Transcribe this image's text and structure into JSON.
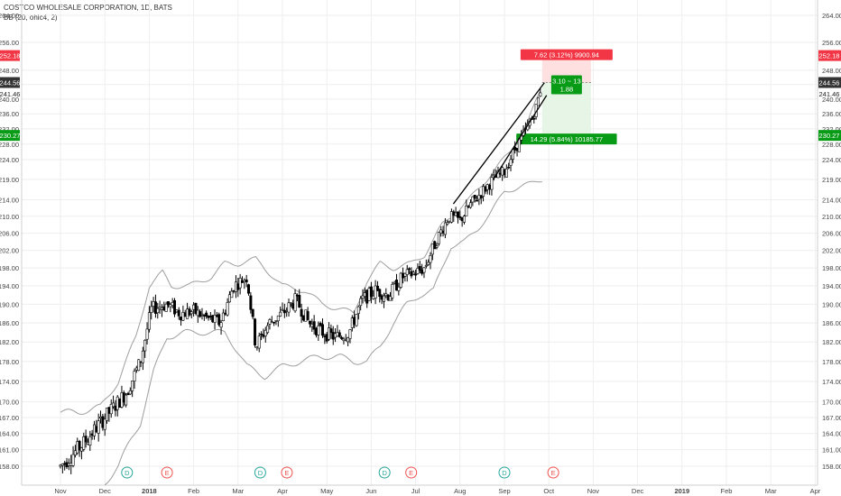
{
  "header": {
    "symbol_line": "COSTCO WHOLESALE CORPORATION, 1D, BATS",
    "indicator_line": "BB (20, ohlc4, 2)"
  },
  "colors": {
    "up": "#000000",
    "down": "#000000",
    "band": "#9e9e9e",
    "grid": "#eeeeee",
    "axis_text": "#444444",
    "stop_fill": "#ffe0e0",
    "target_fill": "#e6f5e6",
    "red_label": "#f23645",
    "green_label": "#089b16",
    "dark_label": "#333333",
    "event_d": "#26a69a",
    "event_e": "#ef5350"
  },
  "chart_data": {
    "type": "candlestick",
    "y_axis": {
      "side": "both",
      "ticks": [
        "264.00",
        "256.00",
        "248.00",
        "244.00",
        "240.00",
        "236.00",
        "232.00",
        "228.00",
        "224.00",
        "219.00",
        "214.00",
        "210.00",
        "206.00",
        "202.00",
        "198.00",
        "194.00",
        "190.00",
        "186.00",
        "182.00",
        "178.00",
        "174.00",
        "170.00",
        "167.00",
        "164.00",
        "161.00",
        "158.00"
      ],
      "tick_values": [
        264,
        256,
        248,
        244,
        240,
        236,
        232,
        228,
        224,
        219,
        214,
        210,
        206,
        202,
        198,
        194,
        190,
        186,
        182,
        178,
        174,
        170,
        167,
        164,
        161,
        158
      ],
      "scale": "log",
      "range": [
        155.9,
        267.0
      ]
    },
    "x_axis": {
      "ticks": [
        "Nov",
        "Dec",
        "2018",
        "Feb",
        "Mar",
        "Apr",
        "May",
        "Jun",
        "Jul",
        "Aug",
        "Sep",
        "Oct",
        "Nov",
        "Dec",
        "2019",
        "Feb",
        "Mar",
        "Apr"
      ]
    },
    "price_labels": [
      {
        "text": "252.18",
        "value": 252.18,
        "color": "red"
      },
      {
        "text": "244.56",
        "value": 244.56,
        "color": "dark"
      },
      {
        "text": "241.46",
        "value": 241.46,
        "color": "none"
      },
      {
        "text": "230.27",
        "value": 230.27,
        "color": "green"
      }
    ],
    "events": [
      {
        "label": "D",
        "month_index": 1.5
      },
      {
        "label": "E",
        "month_index": 2.4
      },
      {
        "label": "D",
        "month_index": 4.5
      },
      {
        "label": "E",
        "month_index": 5.1
      },
      {
        "label": "D",
        "month_index": 7.3
      },
      {
        "label": "E",
        "month_index": 7.9
      },
      {
        "label": "D",
        "month_index": 10.0
      },
      {
        "label": "E",
        "month_index": 11.1
      }
    ],
    "wedge": {
      "upper": {
        "from": {
          "month_index": 8.85,
          "price": 213
        },
        "to": {
          "month_index": 10.9,
          "price": 244.5
        }
      },
      "lower": {
        "from": {
          "month_index": 9.75,
          "price": 219
        },
        "to": {
          "month_index": 10.95,
          "price": 241
        }
      }
    },
    "position": {
      "start_month_index": 10.85,
      "end_month_index": 11.95,
      "entry": 244.56,
      "stop": 252.18,
      "target": 230.27,
      "stop_text": "7.62 (3.12%) 9900.94",
      "ratio_text_1": "3.10 ~ 13",
      "ratio_text_2": "1.88",
      "target_text": "14.29 (5.84%) 10185.77"
    },
    "trend_keypoints": [
      {
        "m": 0.0,
        "p": 158
      },
      {
        "m": 0.5,
        "p": 162
      },
      {
        "m": 1.0,
        "p": 167
      },
      {
        "m": 1.5,
        "p": 172
      },
      {
        "m": 1.8,
        "p": 178
      },
      {
        "m": 2.05,
        "p": 189
      },
      {
        "m": 2.4,
        "p": 190
      },
      {
        "m": 2.7,
        "p": 188
      },
      {
        "m": 3.0,
        "p": 188.5
      },
      {
        "m": 3.3,
        "p": 187
      },
      {
        "m": 3.6,
        "p": 186
      },
      {
        "m": 3.9,
        "p": 194
      },
      {
        "m": 4.2,
        "p": 196
      },
      {
        "m": 4.4,
        "p": 181
      },
      {
        "m": 4.7,
        "p": 186
      },
      {
        "m": 5.0,
        "p": 188
      },
      {
        "m": 5.3,
        "p": 191
      },
      {
        "m": 5.6,
        "p": 186
      },
      {
        "m": 5.9,
        "p": 184
      },
      {
        "m": 6.2,
        "p": 183
      },
      {
        "m": 6.5,
        "p": 184
      },
      {
        "m": 6.8,
        "p": 191
      },
      {
        "m": 7.1,
        "p": 193
      },
      {
        "m": 7.4,
        "p": 192
      },
      {
        "m": 7.7,
        "p": 196
      },
      {
        "m": 8.0,
        "p": 197
      },
      {
        "m": 8.2,
        "p": 198
      },
      {
        "m": 8.5,
        "p": 205
      },
      {
        "m": 8.75,
        "p": 210
      },
      {
        "m": 9.0,
        "p": 209
      },
      {
        "m": 9.25,
        "p": 213
      },
      {
        "m": 9.5,
        "p": 216
      },
      {
        "m": 9.75,
        "p": 219
      },
      {
        "m": 10.0,
        "p": 221
      },
      {
        "m": 10.25,
        "p": 227
      },
      {
        "m": 10.5,
        "p": 232
      },
      {
        "m": 10.7,
        "p": 237
      },
      {
        "m": 10.85,
        "p": 244.5
      }
    ],
    "upper_band_keypoints": [
      {
        "m": 0.0,
        "p": 168
      },
      {
        "m": 0.4,
        "p": 168
      },
      {
        "m": 0.9,
        "p": 169
      },
      {
        "m": 1.3,
        "p": 174
      },
      {
        "m": 1.7,
        "p": 183
      },
      {
        "m": 2.0,
        "p": 194
      },
      {
        "m": 2.3,
        "p": 197
      },
      {
        "m": 2.5,
        "p": 194
      },
      {
        "m": 2.9,
        "p": 194
      },
      {
        "m": 3.4,
        "p": 196
      },
      {
        "m": 3.7,
        "p": 199
      },
      {
        "m": 4.0,
        "p": 199
      },
      {
        "m": 4.4,
        "p": 200
      },
      {
        "m": 4.7,
        "p": 197
      },
      {
        "m": 5.0,
        "p": 194
      },
      {
        "m": 5.5,
        "p": 193
      },
      {
        "m": 5.9,
        "p": 190
      },
      {
        "m": 6.3,
        "p": 189
      },
      {
        "m": 6.6,
        "p": 188
      },
      {
        "m": 6.9,
        "p": 195
      },
      {
        "m": 7.2,
        "p": 199
      },
      {
        "m": 7.5,
        "p": 198
      },
      {
        "m": 7.9,
        "p": 199
      },
      {
        "m": 8.2,
        "p": 201
      },
      {
        "m": 8.6,
        "p": 208
      },
      {
        "m": 8.9,
        "p": 211
      },
      {
        "m": 9.2,
        "p": 214
      },
      {
        "m": 9.6,
        "p": 219
      },
      {
        "m": 9.9,
        "p": 223
      },
      {
        "m": 10.2,
        "p": 227
      },
      {
        "m": 10.5,
        "p": 233
      },
      {
        "m": 10.8,
        "p": 242
      }
    ],
    "lower_band_keypoints": [
      {
        "m": 1.0,
        "p": 155
      },
      {
        "m": 1.3,
        "p": 158
      },
      {
        "m": 1.6,
        "p": 163
      },
      {
        "m": 1.8,
        "p": 166
      },
      {
        "m": 2.1,
        "p": 176
      },
      {
        "m": 2.4,
        "p": 183
      },
      {
        "m": 2.8,
        "p": 184
      },
      {
        "m": 3.3,
        "p": 184
      },
      {
        "m": 3.7,
        "p": 184
      },
      {
        "m": 4.0,
        "p": 180
      },
      {
        "m": 4.2,
        "p": 177
      },
      {
        "m": 4.6,
        "p": 175
      },
      {
        "m": 5.0,
        "p": 177
      },
      {
        "m": 5.4,
        "p": 178
      },
      {
        "m": 5.8,
        "p": 179
      },
      {
        "m": 6.3,
        "p": 179
      },
      {
        "m": 6.6,
        "p": 178
      },
      {
        "m": 6.9,
        "p": 178
      },
      {
        "m": 7.2,
        "p": 181
      },
      {
        "m": 7.5,
        "p": 186
      },
      {
        "m": 7.8,
        "p": 190
      },
      {
        "m": 8.1,
        "p": 192
      },
      {
        "m": 8.4,
        "p": 193
      },
      {
        "m": 8.8,
        "p": 203
      },
      {
        "m": 9.1,
        "p": 204
      },
      {
        "m": 9.4,
        "p": 207
      },
      {
        "m": 9.7,
        "p": 211
      },
      {
        "m": 10.0,
        "p": 216
      },
      {
        "m": 10.3,
        "p": 217
      },
      {
        "m": 10.6,
        "p": 218
      },
      {
        "m": 10.85,
        "p": 219
      }
    ]
  }
}
